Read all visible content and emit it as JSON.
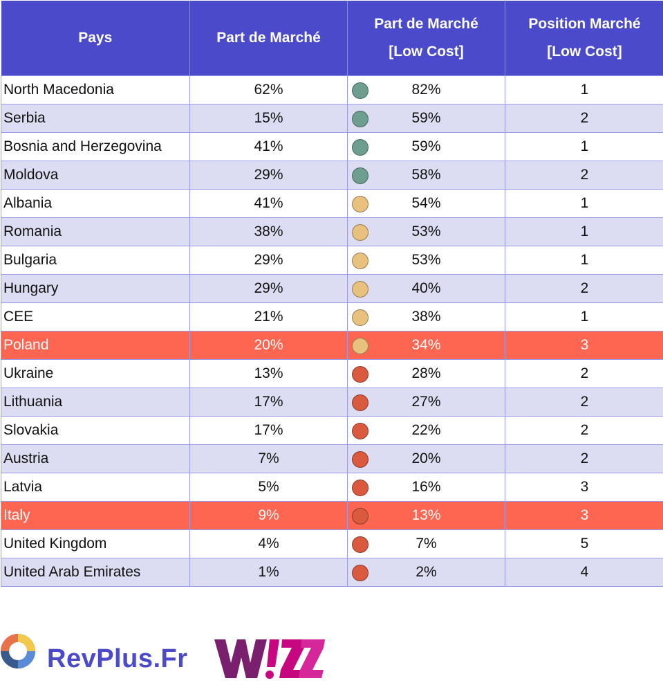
{
  "table": {
    "headers": {
      "pays": "Pays",
      "part_de_marche": "Part de Marché",
      "part_low_cost_line1": "Part de Marché",
      "part_low_cost_line2": "[Low Cost]",
      "position_line1": "Position Marché",
      "position_line2": "[Low Cost]"
    },
    "rows": [
      {
        "country": "North Macedonia",
        "market_share": "62%",
        "low_cost_share": "82%",
        "position": "1",
        "indicator": "green",
        "highlight": false
      },
      {
        "country": "Serbia",
        "market_share": "15%",
        "low_cost_share": "59%",
        "position": "2",
        "indicator": "green",
        "highlight": false
      },
      {
        "country": "Bosnia and Herzegovina",
        "market_share": "41%",
        "low_cost_share": "59%",
        "position": "1",
        "indicator": "green",
        "highlight": false
      },
      {
        "country": "Moldova",
        "market_share": "29%",
        "low_cost_share": "58%",
        "position": "2",
        "indicator": "green",
        "highlight": false
      },
      {
        "country": "Albania",
        "market_share": "41%",
        "low_cost_share": "54%",
        "position": "1",
        "indicator": "yellow",
        "highlight": false
      },
      {
        "country": "Romania",
        "market_share": "38%",
        "low_cost_share": "53%",
        "position": "1",
        "indicator": "yellow",
        "highlight": false
      },
      {
        "country": "Bulgaria",
        "market_share": "29%",
        "low_cost_share": "53%",
        "position": "1",
        "indicator": "yellow",
        "highlight": false
      },
      {
        "country": "Hungary",
        "market_share": "29%",
        "low_cost_share": "40%",
        "position": "2",
        "indicator": "yellow",
        "highlight": false
      },
      {
        "country": "CEE",
        "market_share": "21%",
        "low_cost_share": "38%",
        "position": "1",
        "indicator": "yellow",
        "highlight": false
      },
      {
        "country": "Poland",
        "market_share": "20%",
        "low_cost_share": "34%",
        "position": "3",
        "indicator": "yellow",
        "highlight": true
      },
      {
        "country": "Ukraine",
        "market_share": "13%",
        "low_cost_share": "28%",
        "position": "2",
        "indicator": "red",
        "highlight": false
      },
      {
        "country": "Lithuania",
        "market_share": "17%",
        "low_cost_share": "27%",
        "position": "2",
        "indicator": "red",
        "highlight": false
      },
      {
        "country": "Slovakia",
        "market_share": "17%",
        "low_cost_share": "22%",
        "position": "2",
        "indicator": "red",
        "highlight": false
      },
      {
        "country": "Austria",
        "market_share": "7%",
        "low_cost_share": "20%",
        "position": "2",
        "indicator": "red",
        "highlight": false
      },
      {
        "country": "Latvia",
        "market_share": "5%",
        "low_cost_share": "16%",
        "position": "3",
        "indicator": "red",
        "highlight": false
      },
      {
        "country": "Italy",
        "market_share": "9%",
        "low_cost_share": "13%",
        "position": "3",
        "indicator": "red",
        "highlight": true
      },
      {
        "country": "United Kingdom",
        "market_share": "4%",
        "low_cost_share": "7%",
        "position": "5",
        "indicator": "red",
        "highlight": false
      },
      {
        "country": "United Arab Emirates",
        "market_share": "1%",
        "low_cost_share": "2%",
        "position": "4",
        "indicator": "red",
        "highlight": false
      }
    ]
  },
  "colors": {
    "header_bg": "#4a4acb",
    "row_alt_bg": "#dcdcf2",
    "highlight_bg": "#fe6652",
    "indicator_green": "#6d9e8f",
    "indicator_yellow": "#e8c17f",
    "indicator_red": "#d95a3f",
    "brand_blue": "#4a4acb",
    "wizz_purple": "#7a1f6e",
    "wizz_pink": "#c6077f"
  },
  "footer": {
    "revplus_text": "RevPlus.Fr",
    "revplus_icon": "revplus-logo-icon",
    "wizz_text": "WIZZ"
  }
}
